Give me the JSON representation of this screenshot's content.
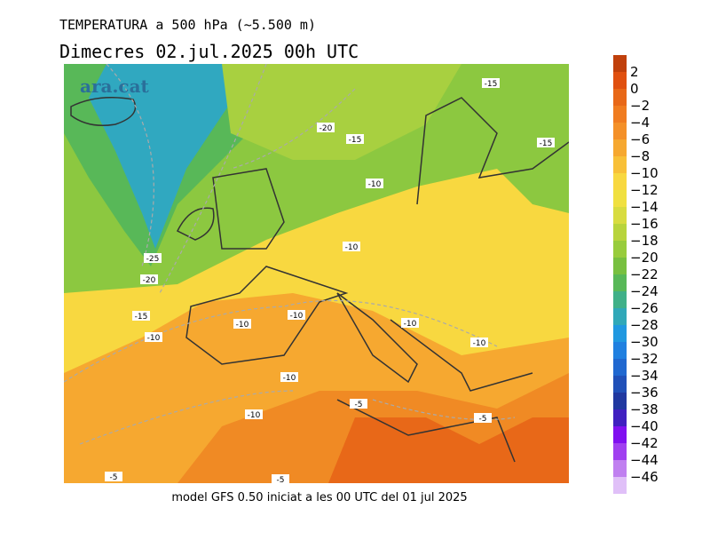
{
  "header": {
    "title": "TEMPERATURA a 500 hPa (~5.500 m)",
    "subtitle": "Dimecres  02.jul.2025 00h UTC"
  },
  "watermark": "ara.cat",
  "footer": "model GFS 0.50 iniciat a les 00 UTC del 01 jul 2025",
  "map": {
    "contour_labels": [
      "-15",
      "-20",
      "-15",
      "-15",
      "-10",
      "-25",
      "-10",
      "-20",
      "-15",
      "-10",
      "-10",
      "-10",
      "-10",
      "-10",
      "-10",
      "-5",
      "-10",
      "-5",
      "-5",
      "-5"
    ]
  },
  "colorbar": {
    "labels": [
      "2",
      "0",
      "−2",
      "−4",
      "−6",
      "−8",
      "−10",
      "−12",
      "−14",
      "−16",
      "−18",
      "−20",
      "−22",
      "−24",
      "−26",
      "−28",
      "−30",
      "−32",
      "−34",
      "−36",
      "−38",
      "−40",
      "−42",
      "−44",
      "−46"
    ],
    "colors": [
      "#c0400c",
      "#e05010",
      "#e86818",
      "#f07c20",
      "#f49028",
      "#f6a830",
      "#f8c038",
      "#f8d840",
      "#f0e040",
      "#d8dc40",
      "#b8d43c",
      "#98cc3c",
      "#78c040",
      "#58b858",
      "#40b088",
      "#30a8b8",
      "#2098e0",
      "#2080e0",
      "#2068d0",
      "#2050b8",
      "#2038a0",
      "#4020c0",
      "#8010f0",
      "#a040f0",
      "#c080f0",
      "#e0c0f8"
    ]
  }
}
